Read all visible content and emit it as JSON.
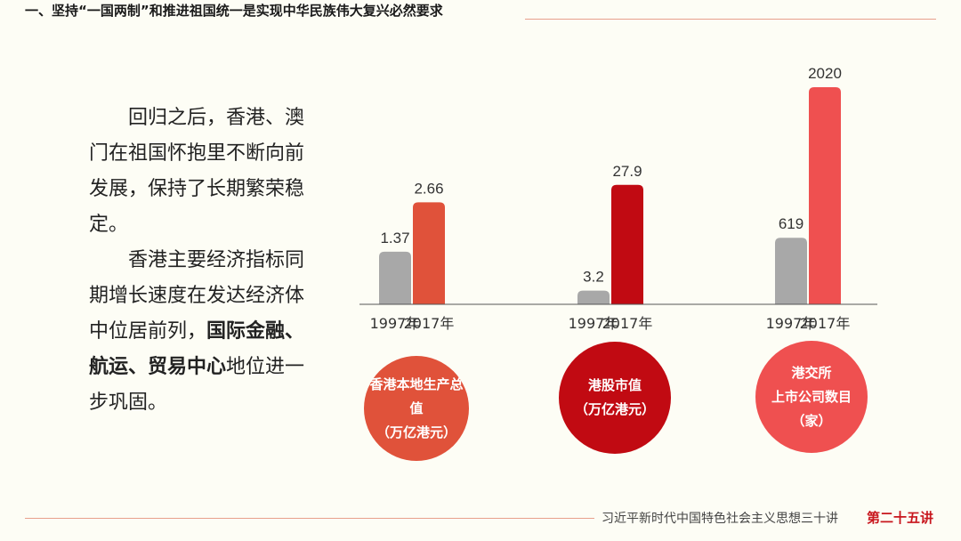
{
  "header": {
    "title": "一、坚持“一国两制”和推进祖国统一是实现中华民族伟大复兴必然要求"
  },
  "text": {
    "p1": "回归之后，香港、澳门在祖国怀抱里不断向前发展，保持了长期繁荣稳定。",
    "p2_plain": "香港主要经济指标同期增长速度在发达经济体中位居前列，",
    "p2_bold": "国际金融、航运、贸易中心",
    "p2_end": "地位进一步巩固。"
  },
  "colors": {
    "gray_bar": "#a8a8a8",
    "gdp": "#e0523a",
    "market": "#c10a12",
    "listed": "#ef5050",
    "axis": "#555555"
  },
  "chart_data": {
    "type": "bar",
    "categories": [
      "1997年",
      "2017年"
    ],
    "groups": [
      {
        "label_lines": [
          "香港本地生产总值",
          "（万亿港元）"
        ],
        "values": [
          1.37,
          2.66
        ],
        "value_labels": [
          "1.37",
          "2.66"
        ],
        "color": "#e0523a"
      },
      {
        "label_lines": [
          "港股市值",
          "（万亿港元）"
        ],
        "values": [
          3.2,
          27.9
        ],
        "value_labels": [
          "3.2",
          "27.9"
        ],
        "color": "#c10a12"
      },
      {
        "label_lines": [
          "港交所",
          "上市公司数目",
          "（家）"
        ],
        "values": [
          619,
          2020
        ],
        "value_labels": [
          "619",
          "2020"
        ],
        "color": "#ef5050"
      }
    ]
  },
  "footer": {
    "series_title": "习近平新时代中国特色社会主义思想三十讲",
    "lecture": "第二十五讲"
  }
}
